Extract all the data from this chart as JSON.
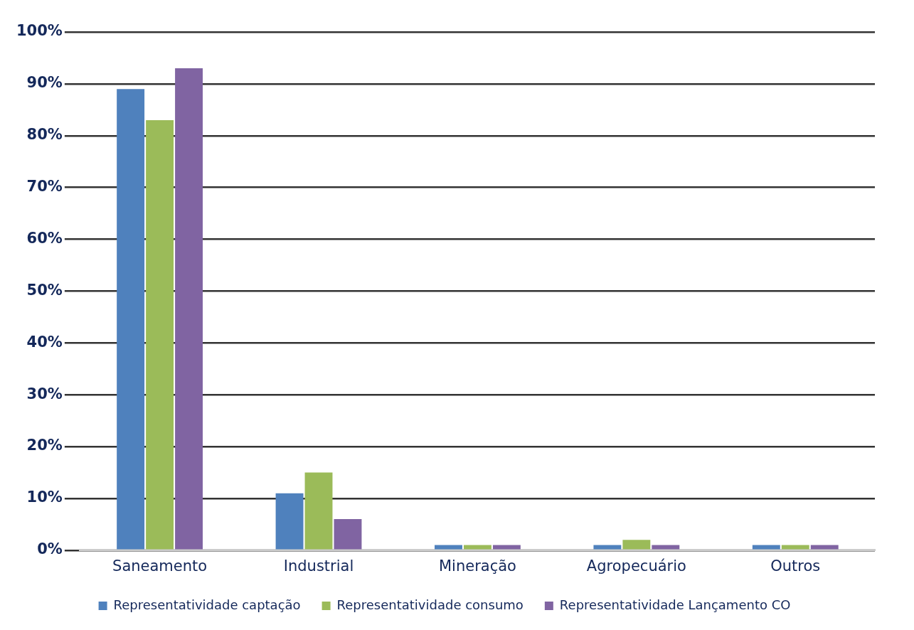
{
  "chart_data": {
    "type": "bar",
    "categories": [
      "Saneamento",
      "Industrial",
      "Mineração",
      "Agropecuário",
      "Outros"
    ],
    "series": [
      {
        "name": "Representatividade captação",
        "color": "#4f81bd",
        "values": [
          89,
          11,
          1,
          1,
          1
        ]
      },
      {
        "name": "Representatividade consumo",
        "color": "#9bbb59",
        "values": [
          83,
          15,
          1,
          2,
          1
        ]
      },
      {
        "name": "Representatividade Lançamento CO",
        "color": "#8064a2",
        "values": [
          93,
          6,
          1,
          1,
          1
        ]
      }
    ],
    "ylim": [
      0,
      100
    ],
    "yticks": [
      {
        "value": 0,
        "label": "0%"
      },
      {
        "value": 10,
        "label": "10%"
      },
      {
        "value": 20,
        "label": "20%"
      },
      {
        "value": 30,
        "label": "30%"
      },
      {
        "value": 40,
        "label": "40%"
      },
      {
        "value": 50,
        "label": "50%"
      },
      {
        "value": 60,
        "label": "60%"
      },
      {
        "value": 70,
        "label": "70%"
      },
      {
        "value": 80,
        "label": "80%"
      },
      {
        "value": 90,
        "label": "90%"
      },
      {
        "value": 100,
        "label": "100%"
      }
    ],
    "grid": "y",
    "legend": "bottom"
  }
}
